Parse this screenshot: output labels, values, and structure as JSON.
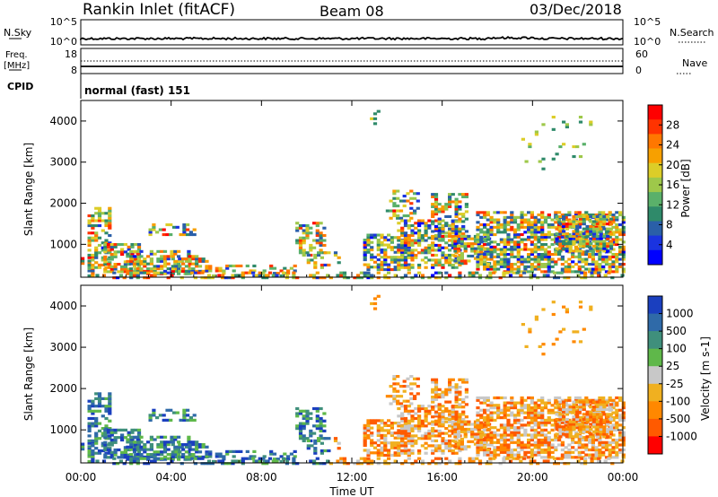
{
  "header": {
    "station": "Rankin Inlet (fitACF)",
    "beam": "Beam 08",
    "date": "03/Dec/2018"
  },
  "top_panels": {
    "nsky": {
      "label": "N.Sky",
      "left_ticks": [
        "10^5",
        "10^0"
      ],
      "right_ticks": [
        "10^5",
        "10^0"
      ],
      "right_label": "N.Search"
    },
    "freq": {
      "label_line1": "Freq.",
      "label_line2": "[MHz]",
      "left_ticks": [
        "18",
        "8"
      ],
      "right_ticks": [
        "60",
        "0"
      ],
      "right_label": "Nave"
    },
    "cpid": {
      "label": "CPID",
      "value": "normal (fast) 151"
    }
  },
  "chart_data": [
    {
      "type": "heatmap",
      "panel": "power",
      "ylabel": "Slant Range [km]",
      "y_ticks": [
        "1000",
        "2000",
        "3000",
        "4000"
      ],
      "ylim": [
        200,
        4500
      ],
      "x_ticks": [
        "00:00",
        "04:00",
        "08:00",
        "12:00",
        "16:00",
        "20:00",
        "00:00"
      ],
      "xlim_hours": [
        0,
        24
      ],
      "colorbar": {
        "label": "Power [dB]",
        "ticks": [
          "28",
          "24",
          "20",
          "16",
          "12",
          "8",
          "4"
        ],
        "colors": [
          "#ff0000",
          "#ff3300",
          "#ff7700",
          "#f7a000",
          "#dccd28",
          "#9ec84a",
          "#5ab06a",
          "#2f8a6a",
          "#2a5fa8",
          "#1a33e0",
          "#0000ff"
        ]
      }
    },
    {
      "type": "heatmap",
      "panel": "velocity",
      "ylabel": "Slant Range [km]",
      "y_ticks": [
        "1000",
        "2000",
        "3000",
        "4000"
      ],
      "ylim": [
        200,
        4500
      ],
      "x_ticks": [
        "00:00",
        "04:00",
        "08:00",
        "12:00",
        "16:00",
        "20:00",
        "00:00"
      ],
      "xlabel": "Time UT",
      "xlim_hours": [
        0,
        24
      ],
      "colorbar": {
        "label": "Velocity [m s-1]",
        "ticks": [
          "1000",
          "500",
          "100",
          "25",
          "-25",
          "-100",
          "-500",
          "-1000"
        ],
        "colors": [
          "#1a3fbf",
          "#2f6aa8",
          "#3f8f7c",
          "#5fb84a",
          "#c8c8c8",
          "#f0b020",
          "#ff8800",
          "#ff5a00",
          "#ff0000"
        ]
      }
    }
  ]
}
